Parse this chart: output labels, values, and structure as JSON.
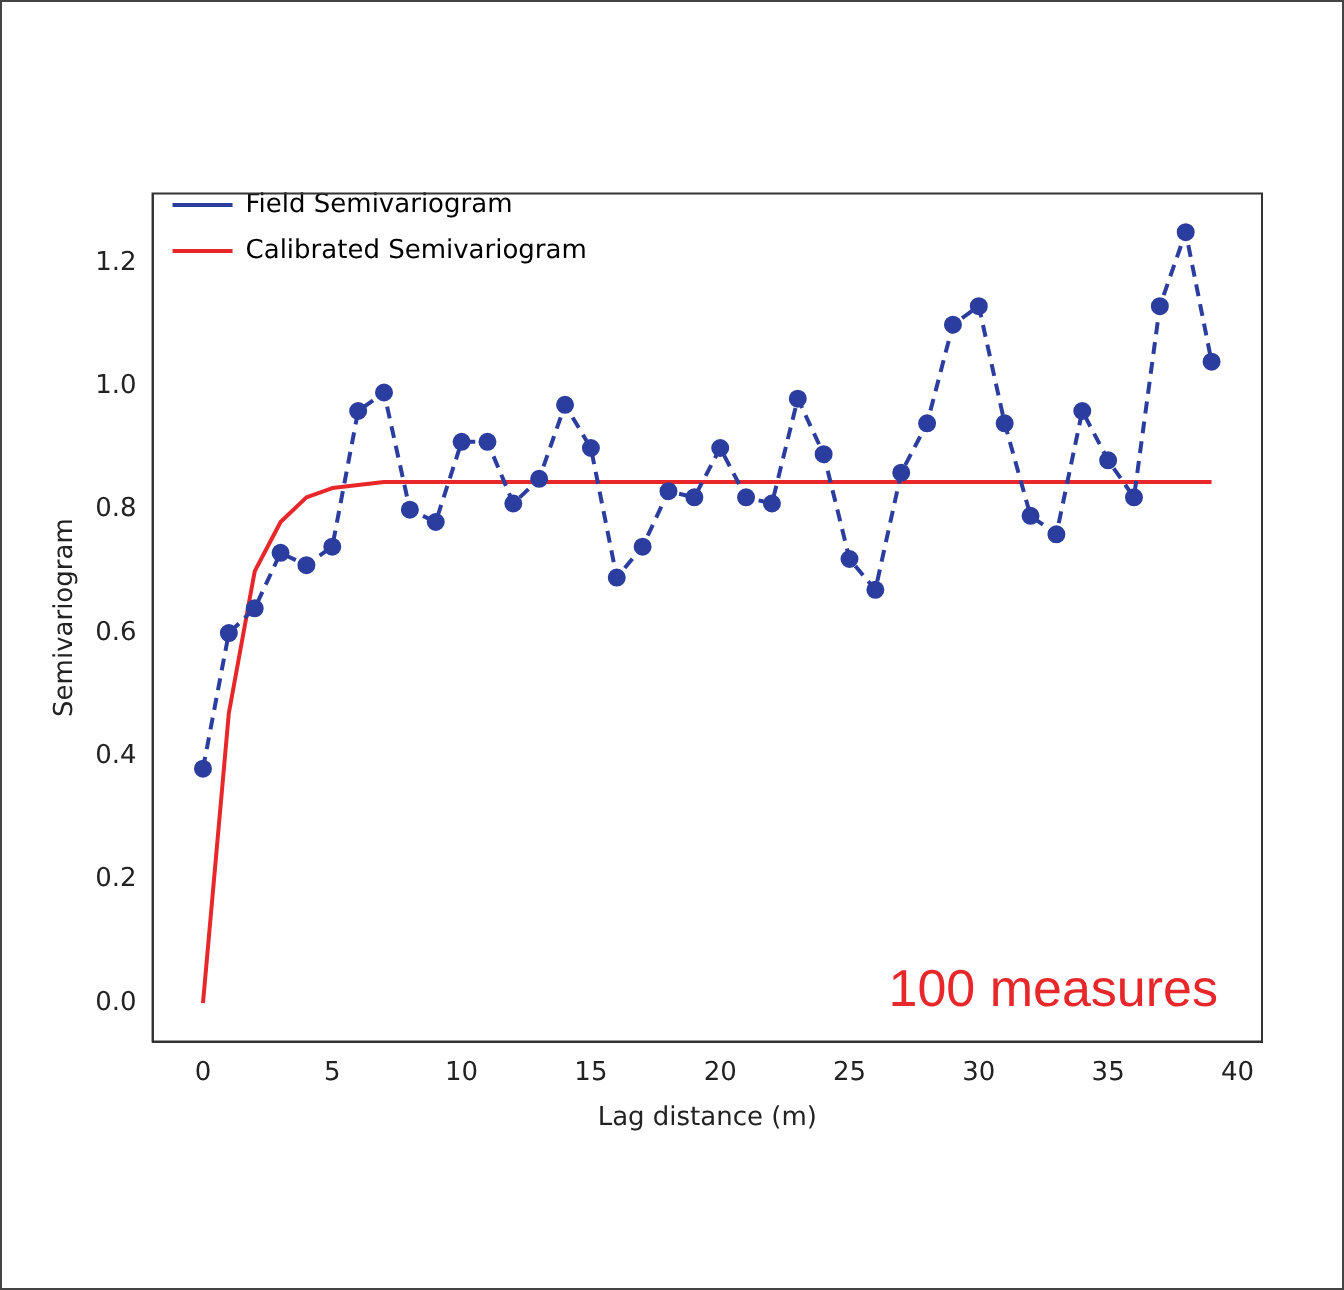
{
  "chart_data": {
    "type": "line",
    "xlabel": "Lag distance (m)",
    "ylabel": "Semivariogram",
    "x": [
      0,
      1,
      2,
      3,
      4,
      5,
      6,
      7,
      8,
      9,
      10,
      11,
      12,
      13,
      14,
      15,
      16,
      17,
      18,
      19,
      20,
      21,
      22,
      23,
      24,
      25,
      26,
      27,
      28,
      29,
      30,
      31,
      32,
      33,
      34,
      35,
      36,
      37,
      38,
      39
    ],
    "series": [
      {
        "name": "Field Semivariogram",
        "color": "#2b3d9e",
        "marker": "circle",
        "line_style": "dashed",
        "values": [
          0.38,
          0.6,
          0.64,
          0.73,
          0.71,
          0.74,
          0.96,
          0.99,
          0.8,
          0.78,
          0.91,
          0.91,
          0.81,
          0.85,
          0.97,
          0.9,
          0.69,
          0.74,
          0.83,
          0.82,
          0.9,
          0.82,
          0.81,
          0.98,
          0.89,
          0.72,
          0.67,
          0.86,
          0.94,
          1.1,
          1.13,
          0.94,
          0.79,
          0.76,
          0.96,
          0.88,
          0.82,
          1.13,
          1.25,
          1.04
        ]
      },
      {
        "name": "Calibrated Semivariogram",
        "color": "#e8272a",
        "marker": "none",
        "line_style": "solid",
        "x": [
          0,
          1,
          2,
          3,
          4,
          5,
          6,
          7,
          39
        ],
        "values": [
          0.0,
          0.47,
          0.7,
          0.78,
          0.82,
          0.835,
          0.84,
          0.845,
          0.845
        ]
      }
    ],
    "xlim": [
      -1.95,
      40.95
    ],
    "ylim": [
      -0.0625,
      1.3125
    ],
    "xticks": [
      0,
      5,
      10,
      15,
      20,
      25,
      30,
      35,
      40
    ],
    "yticks": [
      {
        "value": 0,
        "label": "0.0"
      },
      {
        "value": 0.2,
        "label": "0.2"
      },
      {
        "value": 0.4,
        "label": "0.4"
      },
      {
        "value": 0.6,
        "label": "0.6"
      },
      {
        "value": 0.8,
        "label": "0.8"
      },
      {
        "value": 1,
        "label": "1.0"
      },
      {
        "value": 1.2,
        "label": "1.2"
      }
    ],
    "grid": false,
    "legend": "top left",
    "annotations": [
      "100 measures"
    ]
  }
}
